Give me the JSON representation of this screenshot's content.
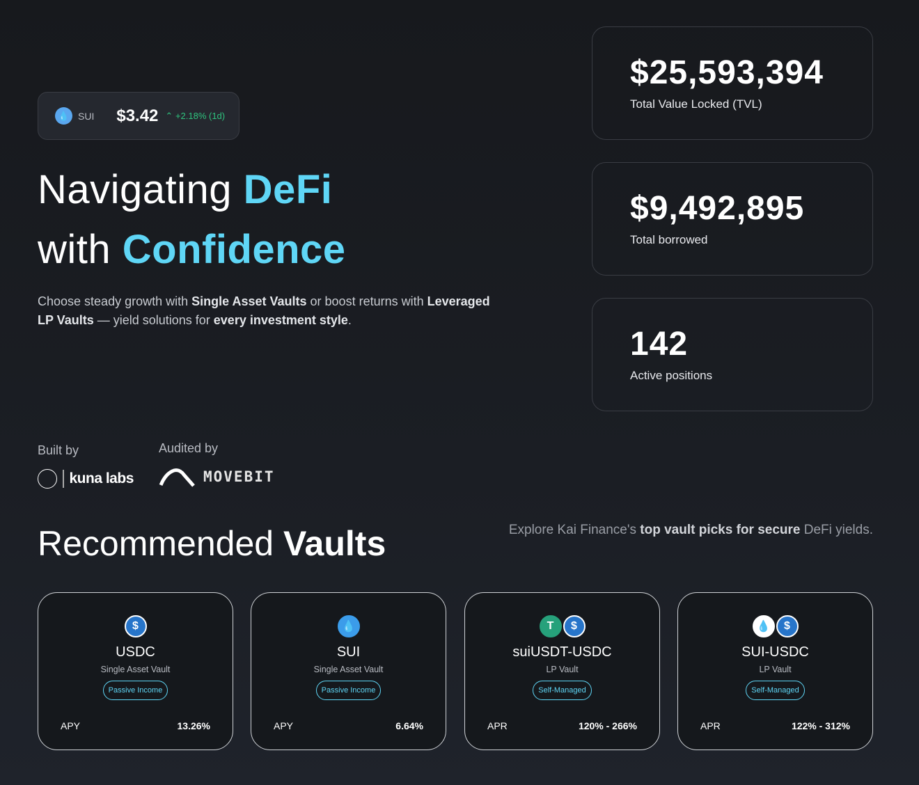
{
  "ticker": {
    "icon": "sui-drop-icon",
    "symbol": "SUI",
    "price": "$3.42",
    "change": "+2.18% (1d)",
    "change_color": "#2fc47f"
  },
  "hero": {
    "line1": "Navigating ",
    "line1_accent": "DeFi",
    "line2": "with ",
    "line2_accent": "Confidence",
    "accent_color": "#5fd6f6",
    "desc": {
      "p1": "Choose steady growth with ",
      "b1": "Single Asset Vaults",
      "p2": " or boost returns with ",
      "b2": "Leveraged LP Vaults",
      "p3": " — yield solutions for ",
      "b3": "every investment style",
      "p4": "."
    }
  },
  "stats": [
    {
      "value": "$25,593,394",
      "label": "Total Value Locked (TVL)"
    },
    {
      "value": "$9,492,895",
      "label": "Total borrowed"
    },
    {
      "value": "142",
      "label": "Active positions"
    }
  ],
  "partners": {
    "built_label": "Built by",
    "built_name": "kuna labs",
    "audited_label": "Audited by",
    "audited_name": "MOVEBIT"
  },
  "recommended": {
    "title_regular": "Recommended ",
    "title_bold": "Vaults",
    "explore": {
      "p1": "Explore Kai Finance's ",
      "b1": "top vault picks for secure",
      "p2": " DeFi yields."
    }
  },
  "vaults": [
    {
      "name": "USDC",
      "type": "Single Asset Vault",
      "tag": "Passive Income",
      "metric": "APY",
      "value": "13.26%",
      "icons": [
        "usdc-icon"
      ]
    },
    {
      "name": "SUI",
      "type": "Single Asset Vault",
      "tag": "Passive Income",
      "metric": "APY",
      "value": "6.64%",
      "icons": [
        "sui-icon"
      ]
    },
    {
      "name": "suiUSDT-USDC",
      "type": "LP Vault",
      "tag": "Self-Managed",
      "metric": "APR",
      "value": "120% - 266%",
      "icons": [
        "usdt-icon",
        "usdc-icon"
      ]
    },
    {
      "name": "SUI-USDC",
      "type": "LP Vault",
      "tag": "Self-Managed",
      "metric": "APR",
      "value": "122% - 312%",
      "icons": [
        "sui-icon",
        "usdc-icon"
      ]
    }
  ]
}
